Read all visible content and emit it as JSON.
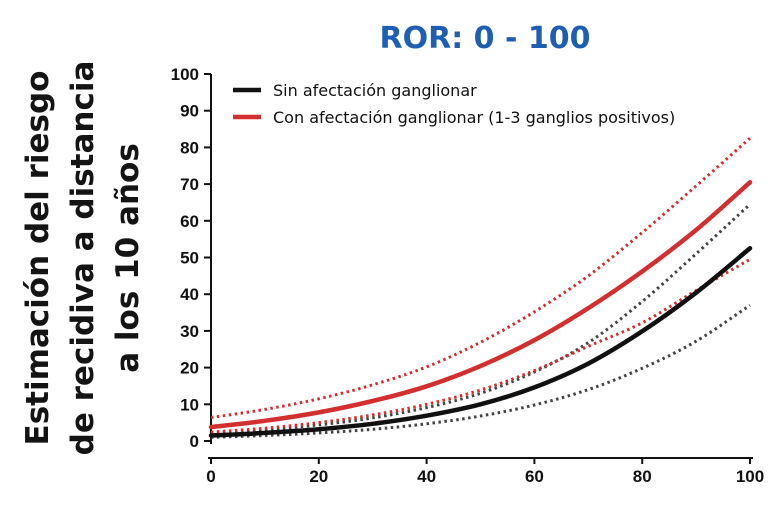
{
  "chart_data": {
    "type": "line",
    "title": "ROR: 0 - 100",
    "xlabel": "",
    "ylabel_lines": [
      "Estimación del riesgo",
      "de recidiva a distancia",
      "a los 10 años"
    ],
    "xlim": [
      0,
      100
    ],
    "ylim": [
      0,
      100
    ],
    "xticks": [
      0,
      20,
      40,
      60,
      80,
      100
    ],
    "yticks": [
      0,
      10,
      20,
      30,
      40,
      50,
      60,
      70,
      80,
      90,
      100
    ],
    "grid": false,
    "legend_position": "top-left",
    "x": [
      0,
      10,
      20,
      30,
      40,
      50,
      60,
      70,
      80,
      90,
      100
    ],
    "series": [
      {
        "name": "Sin afectación ganglionar",
        "color": "#111111",
        "style": "solid",
        "values": [
          1.5,
          2.2,
          3.2,
          4.7,
          6.9,
          10.0,
          14.6,
          21.1,
          29.9,
          40.4,
          52.5
        ]
      },
      {
        "color": "#444444",
        "style": "dotted",
        "values": [
          2.2,
          3.1,
          4.4,
          6.3,
          9.1,
          13.0,
          18.8,
          26.8,
          38.0,
          51.0,
          64.5
        ]
      },
      {
        "color": "#444444",
        "style": "dotted",
        "values": [
          1.0,
          1.5,
          2.2,
          3.2,
          4.7,
          6.8,
          9.8,
          14.0,
          19.8,
          27.2,
          37.0
        ]
      },
      {
        "name": "Con afectación ganglionar (1-3 ganglios positivos)",
        "color": "#d32f2f",
        "style": "solid",
        "values": [
          3.8,
          5.5,
          7.8,
          10.9,
          14.9,
          20.4,
          27.5,
          36.2,
          46.2,
          57.5,
          70.5
        ]
      },
      {
        "color": "#d32f2f",
        "style": "dotted",
        "values": [
          6.4,
          8.6,
          11.5,
          15.3,
          20.2,
          26.9,
          35.2,
          45.0,
          56.8,
          69.5,
          82.5
        ]
      },
      {
        "color": "#d32f2f",
        "style": "dotted",
        "values": [
          2.4,
          3.5,
          5.0,
          7.1,
          10.0,
          13.9,
          19.2,
          25.8,
          32.2,
          41.0,
          49.5
        ]
      }
    ]
  }
}
